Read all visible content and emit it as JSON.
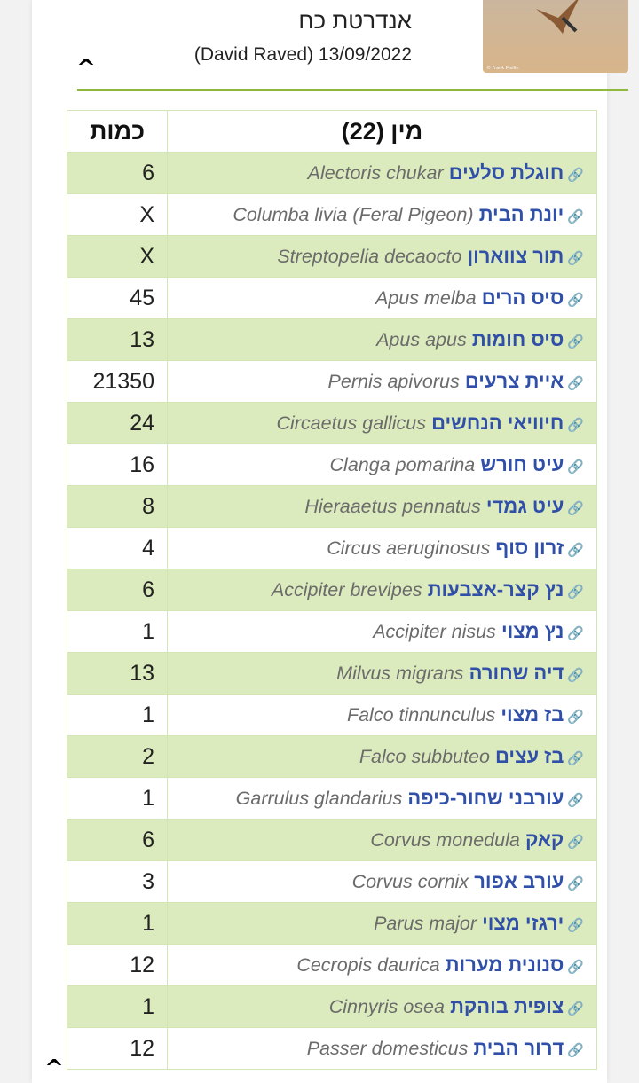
{
  "header": {
    "title": "אנדרטת כח",
    "meta": "(David Raved) 13/09/2022",
    "photo_credit": "© Frank Mellin"
  },
  "table": {
    "col_species": "מין (22)",
    "col_qty": "כמות",
    "rows": [
      {
        "heb": "חוגלת סלעים",
        "lat": "Alectoris chukar",
        "qty": "6"
      },
      {
        "heb": "יונת הבית",
        "lat": "Columba livia (Feral Pigeon)",
        "qty": "X"
      },
      {
        "heb": "תור צווארון",
        "lat": "Streptopelia decaocto",
        "qty": "X"
      },
      {
        "heb": "סיס הרים",
        "lat": "Apus melba",
        "qty": "45"
      },
      {
        "heb": "סיס חומות",
        "lat": "Apus apus",
        "qty": "13"
      },
      {
        "heb": "איית צרעים",
        "lat": "Pernis apivorus",
        "qty": "21350"
      },
      {
        "heb": "חיוויאי הנחשים",
        "lat": "Circaetus gallicus",
        "qty": "24"
      },
      {
        "heb": "עיט חורש",
        "lat": "Clanga pomarina",
        "qty": "16"
      },
      {
        "heb": "עיט גמדי",
        "lat": "Hieraaetus pennatus",
        "qty": "8"
      },
      {
        "heb": "זרון סוף",
        "lat": "Circus aeruginosus",
        "qty": "4"
      },
      {
        "heb": "נץ קצר-אצבעות",
        "lat": "Accipiter brevipes",
        "qty": "6"
      },
      {
        "heb": "נץ מצוי",
        "lat": "Accipiter nisus",
        "qty": "1"
      },
      {
        "heb": "דיה שחורה",
        "lat": "Milvus migrans",
        "qty": "13"
      },
      {
        "heb": "בז מצוי",
        "lat": "Falco tinnunculus",
        "qty": "1"
      },
      {
        "heb": "בז עצים",
        "lat": "Falco subbuteo",
        "qty": "2"
      },
      {
        "heb": "עורבני שחור-כיפה",
        "lat": "Garrulus glandarius",
        "qty": "1"
      },
      {
        "heb": "קאק",
        "lat": "Corvus monedula",
        "qty": "6"
      },
      {
        "heb": "עורב אפור",
        "lat": "Corvus cornix",
        "qty": "3"
      },
      {
        "heb": "ירגזי מצוי",
        "lat": "Parus major",
        "qty": "1"
      },
      {
        "heb": "סנונית מערות",
        "lat": "Cecropis daurica",
        "qty": "12"
      },
      {
        "heb": "צופית בוהקת",
        "lat": "Cinnyris osea",
        "qty": "1"
      },
      {
        "heb": "דרור הבית",
        "lat": "Passer domesticus",
        "qty": "12"
      }
    ]
  },
  "colors": {
    "accent": "#8cb83c",
    "row_alt": "#dcebbd",
    "link": "#2f4fa8"
  }
}
